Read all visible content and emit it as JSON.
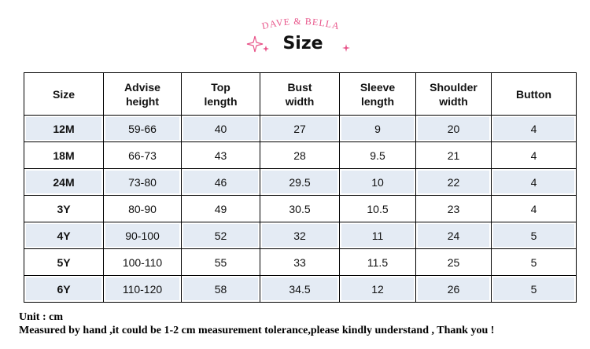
{
  "header": {
    "brand": "DAVE & BELLA",
    "title": "Size"
  },
  "table": {
    "columns": [
      "Size",
      "Advise height",
      "Top length",
      "Bust width",
      "Sleeve length",
      "Shoulder width",
      "Button"
    ],
    "rows": [
      [
        "12M",
        "59-66",
        "40",
        "27",
        "9",
        "20",
        "4"
      ],
      [
        "18M",
        "66-73",
        "43",
        "28",
        "9.5",
        "21",
        "4"
      ],
      [
        "24M",
        "73-80",
        "46",
        "29.5",
        "10",
        "22",
        "4"
      ],
      [
        "3Y",
        "80-90",
        "49",
        "30.5",
        "10.5",
        "23",
        "4"
      ],
      [
        "4Y",
        "90-100",
        "52",
        "32",
        "11",
        "24",
        "5"
      ],
      [
        "5Y",
        "100-110",
        "55",
        "33",
        "11.5",
        "25",
        "5"
      ],
      [
        "6Y",
        "110-120",
        "58",
        "34.5",
        "12",
        "26",
        "5"
      ]
    ]
  },
  "notes": [
    "Unit : cm",
    "Measured by hand ,it could be 1-2 cm measurement tolerance,please kindly understand , Thank you !"
  ]
}
